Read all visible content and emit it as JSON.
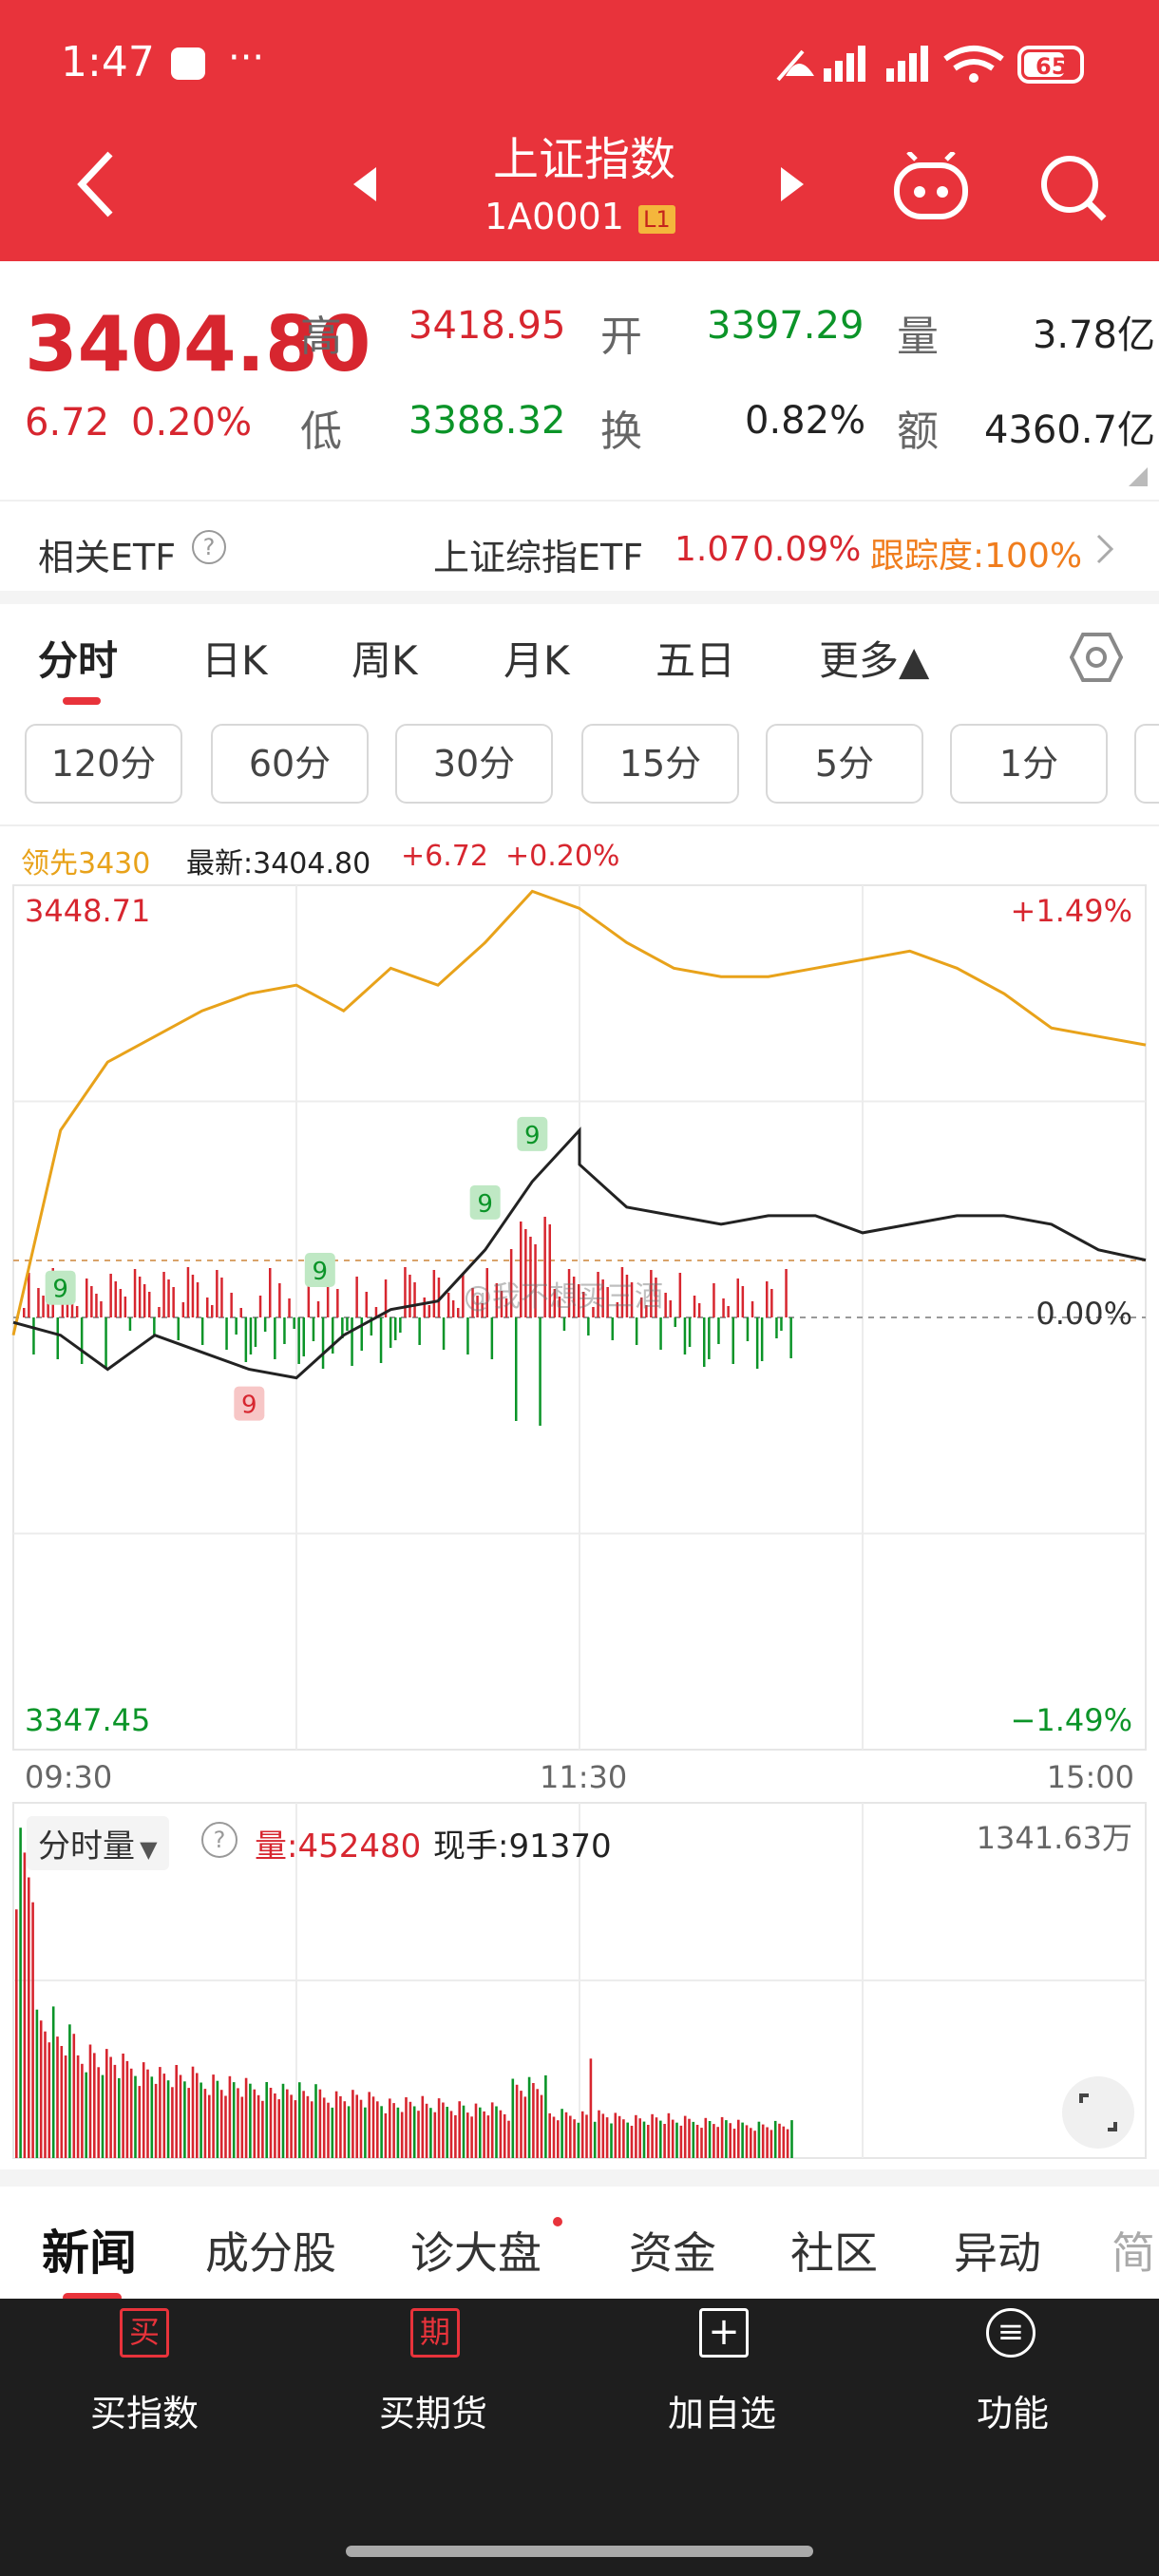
{
  "status_bar": {
    "time": "1:47",
    "more": "···",
    "battery": "65"
  },
  "header": {
    "title": "上证指数",
    "code": "1A0001",
    "level_badge": "L1"
  },
  "quote": {
    "price": "3404.80",
    "change": "6.72",
    "change_pct": "0.20%",
    "high_label": "高",
    "high": "3418.95",
    "low_label": "低",
    "low": "3388.32",
    "open_label": "开",
    "open": "3397.29",
    "turnover_label": "换",
    "turnover": "0.82%",
    "volume_label": "量",
    "volume": "3.78亿",
    "amount_label": "额",
    "amount": "4360.7亿"
  },
  "etf_row": {
    "label": "相关ETF",
    "help": "?",
    "name": "上证综指ETF",
    "price": "1.07",
    "pct": "0.09%",
    "tracking": "跟踪度:100%"
  },
  "chart_tabs": [
    "分时",
    "日K",
    "周K",
    "月K",
    "五日",
    "更多▲"
  ],
  "minute_tabs": [
    "120分",
    "60分",
    "30分",
    "15分",
    "5分",
    "1分"
  ],
  "intraday_header": {
    "lead": "领先3430",
    "latest": "最新:3404.80",
    "chg": "+6.72",
    "chg_pct": "+0.20%"
  },
  "price_axis": {
    "top": "3448.71",
    "bottom": "3347.45",
    "top_pct": "+1.49%",
    "bottom_pct": "−1.49%",
    "mid_pct": "0.00%"
  },
  "time_axis": [
    "09:30",
    "11:30",
    "15:00"
  ],
  "marker_label": "9",
  "watermark": "@我不想买三酒",
  "volume_panel": {
    "selector": "分时量",
    "help": "?",
    "volume": "量:452480",
    "current": "现手:91370",
    "max": "1341.63万"
  },
  "news_tabs": [
    "新闻",
    "成分股",
    "诊大盘",
    "资金",
    "社区",
    "异动",
    "简"
  ],
  "bottom_nav": [
    {
      "icon": "买",
      "label": "买指数"
    },
    {
      "icon": "期",
      "label": "买期货"
    },
    {
      "icon": "+",
      "label": "加自选"
    },
    {
      "icon": "≡",
      "label": "功能"
    }
  ],
  "colors": {
    "brand": "#e8333b",
    "up": "#d7262f",
    "down": "#0b9428",
    "lead_line": "#e8a21a",
    "orange": "#f07d1d"
  },
  "chart_data": {
    "type": "line",
    "x_range": [
      "09:30",
      "15:00"
    ],
    "y_range": [
      3347.45,
      3448.71
    ],
    "pre_close": 3398.08,
    "series": [
      {
        "name": "最新",
        "x": [
          "09:30",
          "09:40",
          "09:50",
          "10:00",
          "10:10",
          "10:20",
          "10:30",
          "10:40",
          "10:50",
          "11:00",
          "11:10",
          "11:20",
          "11:30",
          "13:00",
          "13:10",
          "13:20",
          "13:30",
          "13:40",
          "13:50",
          "14:00",
          "14:10",
          "14:20",
          "14:30",
          "14:40",
          "14:50",
          "15:00"
        ],
        "values": [
          3397.5,
          3396,
          3392,
          3396,
          3394,
          3392,
          3391,
          3396,
          3399,
          3400,
          3406,
          3414,
          3420,
          3416,
          3411,
          3410,
          3409,
          3410,
          3410,
          3408,
          3409,
          3410,
          3410,
          3409,
          3406,
          3404.8
        ]
      },
      {
        "name": "领先",
        "x": [
          "09:30",
          "09:40",
          "09:50",
          "10:00",
          "10:10",
          "10:20",
          "10:30",
          "10:40",
          "10:50",
          "11:00",
          "11:10",
          "11:20",
          "11:30",
          "13:00",
          "13:10",
          "13:20",
          "13:30",
          "13:40",
          "13:50",
          "14:00",
          "14:10",
          "14:20",
          "14:30",
          "14:40",
          "14:50",
          "15:00"
        ],
        "values": [
          3396,
          3420,
          3428,
          3431,
          3434,
          3436,
          3437,
          3434,
          3439,
          3437,
          3442,
          3448,
          3446,
          3446,
          3442,
          3439,
          3438,
          3438,
          3439,
          3440,
          3441,
          3439,
          3436,
          3432,
          3431,
          3430
        ]
      }
    ],
    "signal_markers": [
      {
        "time": "09:40",
        "type": "top"
      },
      {
        "time": "10:20",
        "type": "bottom"
      },
      {
        "time": "10:35",
        "type": "top"
      },
      {
        "time": "11:10",
        "type": "top"
      },
      {
        "time": "11:20",
        "type": "top"
      }
    ],
    "volume_bars": {
      "max": 13416300,
      "values": [
        10.0,
        4.4,
        3.8,
        3.4,
        3.2,
        3.0,
        2.9,
        2.7,
        2.6,
        2.5,
        2.4,
        2.3,
        2.3,
        2.2,
        2.1,
        2.0,
        2.0,
        1.9,
        1.8,
        1.8,
        1.7,
        1.7,
        1.6,
        1.6,
        1.5,
        1.5,
        1.4,
        1.4,
        1.4,
        1.3,
        1.3,
        1.3,
        1.2,
        1.2,
        1.2,
        1.1,
        1.1,
        1.1,
        1.0,
        1.0
      ]
    }
  }
}
